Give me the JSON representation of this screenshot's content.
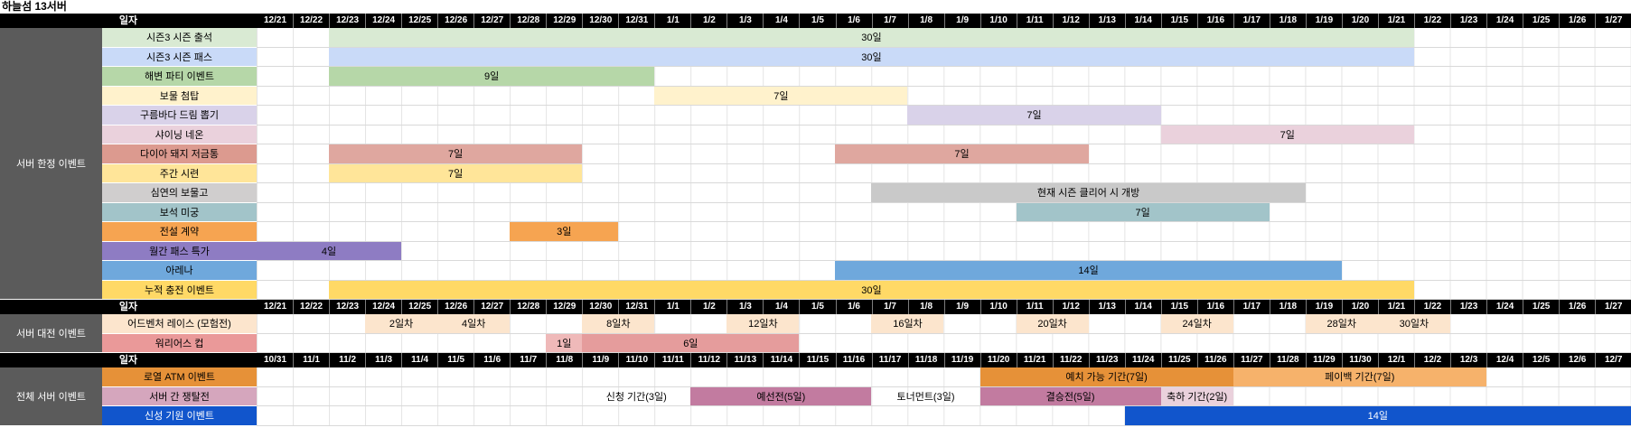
{
  "title": "하늘섬 13서버",
  "header_label": "일자",
  "colors": {
    "header_bg": "#000000",
    "header_text": "#ffffff",
    "section_label_bg": "#5b5b5b",
    "section_label_text": "#ffffff",
    "grid_line": "#e4e4e4",
    "row_border": "#d9d9d9"
  },
  "chart_data": {
    "type": "gantt",
    "x_axis": "dates",
    "columns_per_header": 38,
    "sections": [
      {
        "name": "서버 한정 이벤트",
        "dates": [
          "12/21",
          "12/22",
          "12/23",
          "12/24",
          "12/25",
          "12/26",
          "12/27",
          "12/28",
          "12/29",
          "12/30",
          "12/31",
          "1/1",
          "1/2",
          "1/3",
          "1/4",
          "1/5",
          "1/6",
          "1/7",
          "1/8",
          "1/9",
          "1/10",
          "1/11",
          "1/12",
          "1/13",
          "1/14",
          "1/15",
          "1/16",
          "1/17",
          "1/18",
          "1/19",
          "1/20",
          "1/21",
          "1/22",
          "1/23",
          "1/24",
          "1/25",
          "1/26",
          "1/27"
        ],
        "rows": [
          {
            "label": "시즌3 시즌 출석",
            "color": "#d9ead3",
            "bars": [
              {
                "start": 2,
                "days": 30,
                "text": "30일",
                "color": "#d9ead3",
                "range": "12/23-1/21"
              }
            ]
          },
          {
            "label": "시즌3 시즌 패스",
            "color": "#c9daf8",
            "bars": [
              {
                "start": 2,
                "days": 30,
                "text": "30일",
                "color": "#c9daf8",
                "range": "12/23-1/21"
              }
            ]
          },
          {
            "label": "해변 파티 이벤트",
            "color": "#b6d7a8",
            "bars": [
              {
                "start": 2,
                "days": 9,
                "text": "9일",
                "color": "#b6d7a8",
                "range": "12/23-12/31"
              }
            ]
          },
          {
            "label": "보물 첨탑",
            "color": "#fff2cc",
            "bars": [
              {
                "start": 11,
                "days": 7,
                "text": "7일",
                "color": "#fff2cc",
                "range": "1/1-1/7"
              }
            ]
          },
          {
            "label": "구름바다 드림 뽑기",
            "color": "#d9d2e9",
            "bars": [
              {
                "start": 18,
                "days": 7,
                "text": "7일",
                "color": "#d9d2e9",
                "range": "1/8-1/14"
              }
            ]
          },
          {
            "label": "샤이닝 네온",
            "color": "#ead1dc",
            "bars": [
              {
                "start": 25,
                "days": 7,
                "text": "7일",
                "color": "#ead1dc",
                "range": "1/15-1/21"
              }
            ]
          },
          {
            "label": "다이아 돼지 저금통",
            "color": "#dc9a8f",
            "bars": [
              {
                "start": 2,
                "days": 7,
                "text": "7일",
                "color": "#dfa79f",
                "range": "12/23-12/29"
              },
              {
                "start": 16,
                "days": 7,
                "text": "7일",
                "color": "#dfa79f",
                "range": "1/6-1/12"
              }
            ]
          },
          {
            "label": "주간 시련",
            "color": "#ffe599",
            "bars": [
              {
                "start": 2,
                "days": 7,
                "text": "7일",
                "color": "#ffe599",
                "range": "12/23-12/29"
              }
            ]
          },
          {
            "label": "심연의 보물고",
            "color": "#d0cece",
            "bars": [
              {
                "start": 17,
                "days": 12,
                "text": "현재 시즌 클리어 시 개방",
                "color": "#c9c9c9",
                "range": "1/7-1/18"
              }
            ]
          },
          {
            "label": "보석 미궁",
            "color": "#a2c4c9",
            "bars": [
              {
                "start": 21,
                "days": 7,
                "text": "7일",
                "color": "#a2c4c9",
                "range": "1/11-1/17"
              }
            ]
          },
          {
            "label": "전설 계약",
            "color": "#f6a451",
            "bars": [
              {
                "start": 7,
                "days": 3,
                "text": "3일",
                "color": "#f6a451",
                "range": "12/28-12/30"
              }
            ]
          },
          {
            "label": "월간 패스 특가",
            "color": "#8e7cc3",
            "bars": [
              {
                "start": 0,
                "days": 4,
                "text": "4일",
                "color": "#8e7cc3",
                "range": "12/21-12/24"
              }
            ]
          },
          {
            "label": "아레나",
            "color": "#6fa8dc",
            "bars": [
              {
                "start": 16,
                "days": 14,
                "text": "14일",
                "color": "#6fa8dc",
                "range": "1/6-1/19"
              }
            ]
          },
          {
            "label": "누적 충전 이벤트",
            "color": "#ffd966",
            "bars": [
              {
                "start": 2,
                "days": 30,
                "text": "30일",
                "color": "#ffd966",
                "range": "12/23-1/21"
              }
            ]
          }
        ]
      },
      {
        "name": "서버 대전 이벤트",
        "dates": [
          "12/21",
          "12/22",
          "12/23",
          "12/24",
          "12/25",
          "12/26",
          "12/27",
          "12/28",
          "12/29",
          "12/30",
          "12/31",
          "1/1",
          "1/2",
          "1/3",
          "1/4",
          "1/5",
          "1/6",
          "1/7",
          "1/8",
          "1/9",
          "1/10",
          "1/11",
          "1/12",
          "1/13",
          "1/14",
          "1/15",
          "1/16",
          "1/17",
          "1/18",
          "1/19",
          "1/20",
          "1/21",
          "1/22",
          "1/23",
          "1/24",
          "1/25",
          "1/26",
          "1/27"
        ],
        "rows": [
          {
            "label": "어드벤처 레이스 (모험전)",
            "color": "#fce5cd",
            "bars": [
              {
                "start": 3,
                "days": 2,
                "text": "2일차",
                "color": "#fce5cd",
                "range": "12/24"
              },
              {
                "start": 5,
                "days": 2,
                "text": "4일차",
                "color": "#fce5cd",
                "range": "12/26"
              },
              {
                "start": 9,
                "days": 2,
                "text": "8일차",
                "color": "#fce5cd",
                "range": "12/30"
              },
              {
                "start": 13,
                "days": 2,
                "text": "12일차",
                "color": "#fce5cd",
                "range": "1/3"
              },
              {
                "start": 17,
                "days": 2,
                "text": "16일차",
                "color": "#fce5cd",
                "range": "1/7"
              },
              {
                "start": 21,
                "days": 2,
                "text": "20일차",
                "color": "#fce5cd",
                "range": "1/11"
              },
              {
                "start": 25,
                "days": 2,
                "text": "24일차",
                "color": "#fce5cd",
                "range": "1/15"
              },
              {
                "start": 29,
                "days": 2,
                "text": "28일차",
                "color": "#fce5cd",
                "range": "1/19"
              },
              {
                "start": 31,
                "days": 2,
                "text": "30일차",
                "color": "#fce5cd",
                "range": "1/21"
              }
            ]
          },
          {
            "label": "워리어스 컵",
            "color": "#ea9999",
            "bars": [
              {
                "start": 8,
                "days": 1,
                "text": "1일",
                "color": "#efb9b9",
                "range": "12/29"
              },
              {
                "start": 9,
                "days": 6,
                "text": "6일",
                "color": "#e59c9c",
                "range": "12/30-1/4"
              }
            ]
          }
        ]
      },
      {
        "name": "전체 서버 이벤트",
        "dates": [
          "10/31",
          "11/1",
          "11/2",
          "11/3",
          "11/4",
          "11/5",
          "11/6",
          "11/7",
          "11/8",
          "11/9",
          "11/10",
          "11/11",
          "11/12",
          "11/13",
          "11/14",
          "11/15",
          "11/16",
          "11/17",
          "11/18",
          "11/19",
          "11/20",
          "11/21",
          "11/22",
          "11/23",
          "11/24",
          "11/25",
          "11/26",
          "11/27",
          "11/28",
          "11/29",
          "11/30",
          "12/1",
          "12/2",
          "12/3",
          "12/4",
          "12/5",
          "12/6",
          "12/7"
        ],
        "rows": [
          {
            "label": "로열 ATM 이벤트",
            "color": "#e69138",
            "bars": [
              {
                "start": 20,
                "days": 7,
                "text": "예치 가능 기간(7일)",
                "color": "#e69138",
                "range": "11/20-11/26"
              },
              {
                "start": 27,
                "days": 7,
                "text": "페이백 기간(7일)",
                "color": "#f6b26b",
                "range": "11/27-12/3"
              }
            ]
          },
          {
            "label": "서버 간 쟁탈전",
            "color": "#d5a6bd",
            "bars": [
              {
                "start": 9,
                "days": 3,
                "text": "신청 기간(3일)",
                "color": "",
                "range": "11/9-11/11"
              },
              {
                "start": 12,
                "days": 5,
                "text": "예선전(5일)",
                "color": "#c27ba0",
                "range": "11/12-11/16"
              },
              {
                "start": 17,
                "days": 3,
                "text": "토너먼트(3일)",
                "color": "",
                "range": "11/17-11/19"
              },
              {
                "start": 20,
                "days": 5,
                "text": "결승전(5일)",
                "color": "#c27ba0",
                "range": "11/20-11/24"
              },
              {
                "start": 25,
                "days": 2,
                "text": "축하 기간(2일)",
                "color": "#ead1dc",
                "range": "11/25-11/26"
              }
            ]
          },
          {
            "label": "신성 기원 이벤트",
            "color": "#1155cc",
            "label_text_color": "#ffffff",
            "bars": [
              {
                "start": 24,
                "days": 14,
                "text": "14일",
                "color": "#1155cc",
                "text_color": "#ffffff",
                "range": "11/24-12/7"
              }
            ]
          }
        ]
      }
    ]
  }
}
